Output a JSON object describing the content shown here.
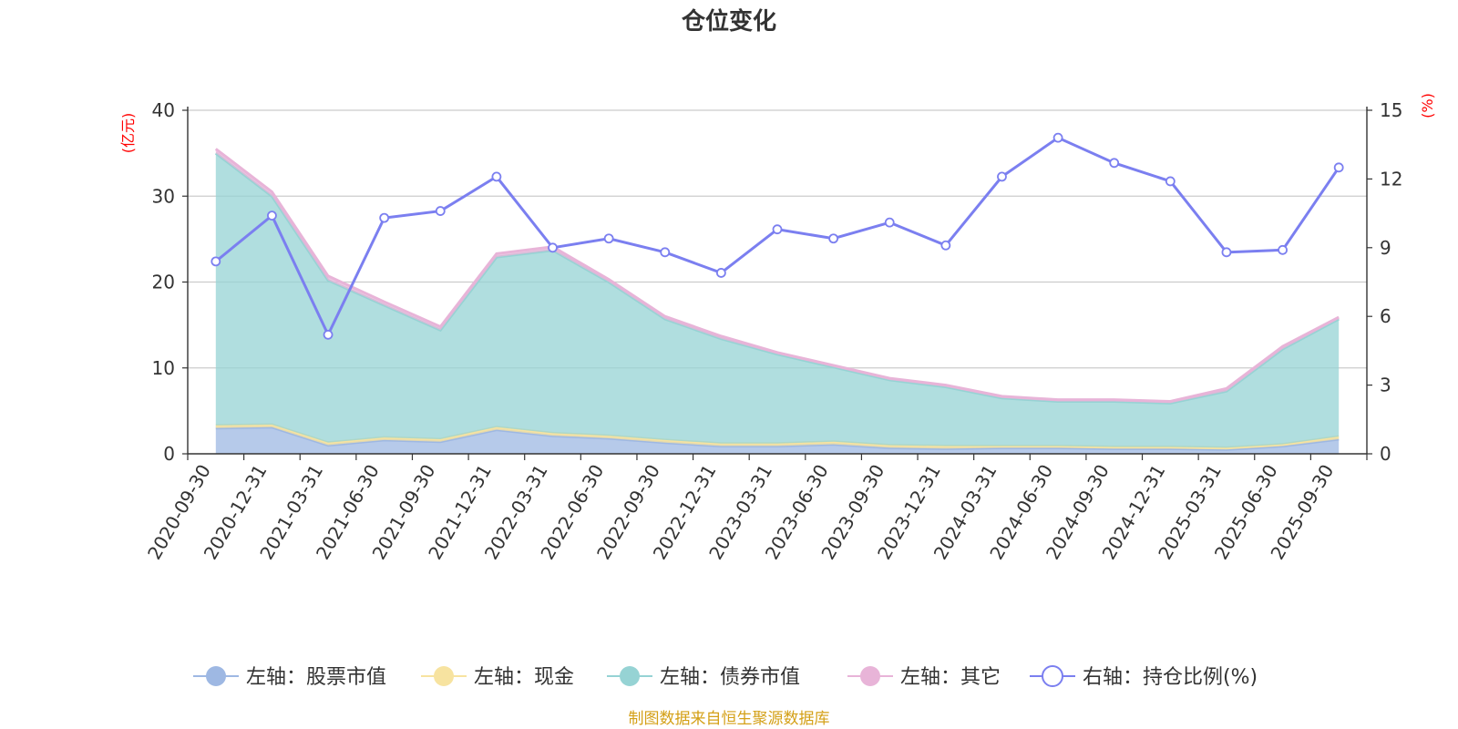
{
  "chart_data": {
    "type": "area",
    "title": "仓位变化",
    "left_axis": {
      "unit": "(亿元)",
      "ylim": [
        0,
        40
      ],
      "ticks": [
        0,
        10,
        20,
        30,
        40
      ]
    },
    "right_axis": {
      "unit": "(%)",
      "ylim": [
        0,
        15
      ],
      "ticks": [
        0,
        3,
        6,
        9,
        12,
        15
      ]
    },
    "categories": [
      "2020-09-30",
      "2020-12-31",
      "2021-03-31",
      "2021-06-30",
      "2021-09-30",
      "2021-12-31",
      "2022-03-31",
      "2022-06-30",
      "2022-09-30",
      "2022-12-31",
      "2023-03-31",
      "2023-06-30",
      "2023-09-30",
      "2023-12-31",
      "2024-03-31",
      "2024-06-30",
      "2024-09-30",
      "2024-12-31",
      "2025-03-31",
      "2025-06-30",
      "2025-09-30"
    ],
    "series": [
      {
        "name": "左轴：股票市值",
        "axis": "left",
        "stack": true,
        "color": "#9eb8e3",
        "values": [
          3.0,
          3.1,
          1.0,
          1.6,
          1.4,
          2.8,
          2.1,
          1.8,
          1.3,
          0.9,
          0.9,
          1.1,
          0.7,
          0.6,
          0.7,
          0.7,
          0.6,
          0.6,
          0.5,
          0.9,
          1.7
        ]
      },
      {
        "name": "左轴：现金",
        "axis": "left",
        "stack": true,
        "color": "#f7e3a0",
        "values": [
          0.3,
          0.3,
          0.3,
          0.3,
          0.3,
          0.3,
          0.3,
          0.3,
          0.3,
          0.3,
          0.3,
          0.3,
          0.3,
          0.3,
          0.2,
          0.2,
          0.2,
          0.2,
          0.2,
          0.2,
          0.3
        ]
      },
      {
        "name": "左轴：债券市值",
        "axis": "left",
        "stack": true,
        "color": "#96d3d4",
        "values": [
          31.7,
          26.6,
          18.9,
          15.4,
          12.7,
          19.8,
          21.3,
          17.9,
          14.1,
          12.2,
          10.4,
          8.7,
          7.6,
          6.9,
          5.6,
          5.2,
          5.3,
          5.1,
          6.6,
          11.1,
          13.7
        ]
      },
      {
        "name": "左轴：其它",
        "axis": "left",
        "stack": true,
        "color": "#e8b4d8",
        "values": [
          0.5,
          0.5,
          0.5,
          0.4,
          0.4,
          0.4,
          0.4,
          0.3,
          0.3,
          0.3,
          0.2,
          0.2,
          0.2,
          0.2,
          0.2,
          0.2,
          0.2,
          0.2,
          0.3,
          0.3,
          0.2
        ]
      },
      {
        "name": "右轴：持仓比例(%)",
        "axis": "right",
        "type": "line",
        "color": "#7b7ff0",
        "values": [
          8.4,
          10.4,
          5.2,
          10.3,
          10.6,
          12.1,
          9.0,
          9.4,
          8.8,
          7.9,
          9.8,
          9.4,
          10.1,
          9.1,
          12.1,
          13.8,
          12.7,
          11.9,
          8.8,
          8.9,
          12.5
        ]
      }
    ],
    "legend_position": "bottom",
    "grid": true
  },
  "source_text": "制图数据来自恒生聚源数据库"
}
